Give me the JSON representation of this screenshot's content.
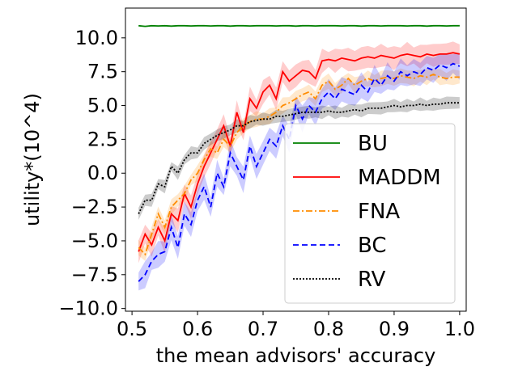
{
  "chart_data": {
    "type": "line",
    "title": "",
    "xlabel": "the mean advisors' accuracy",
    "ylabel": "utility*(10^4)",
    "xlim": [
      0.49,
      1.01
    ],
    "ylim": [
      -10.2,
      12.2
    ],
    "xticks": [
      0.5,
      0.6,
      0.7,
      0.8,
      0.9,
      1.0
    ],
    "xtick_labels": [
      "0.5",
      "0.6",
      "0.7",
      "0.8",
      "0.9",
      "1.0"
    ],
    "yticks": [
      -10,
      -7.5,
      -5,
      -2.5,
      0,
      2.5,
      5,
      7.5,
      10
    ],
    "ytick_labels": [
      "−10.0",
      "−7.5",
      "−5.0",
      "−2.5",
      "0.0",
      "2.5",
      "5.0",
      "7.5",
      "10.0"
    ],
    "grid": false,
    "legend_position": "lower-right",
    "x": [
      0.51,
      0.52,
      0.53,
      0.54,
      0.55,
      0.56,
      0.57,
      0.58,
      0.59,
      0.6,
      0.61,
      0.62,
      0.63,
      0.64,
      0.65,
      0.66,
      0.67,
      0.68,
      0.69,
      0.7,
      0.71,
      0.72,
      0.73,
      0.74,
      0.75,
      0.76,
      0.77,
      0.78,
      0.79,
      0.8,
      0.81,
      0.82,
      0.83,
      0.84,
      0.85,
      0.86,
      0.87,
      0.88,
      0.89,
      0.9,
      0.91,
      0.92,
      0.93,
      0.94,
      0.95,
      0.96,
      0.97,
      0.98,
      0.99,
      1.0
    ],
    "series": [
      {
        "name": "BU",
        "color": "#008000",
        "dash": "solid",
        "values": [
          10.9,
          10.85,
          10.9,
          10.88,
          10.9,
          10.87,
          10.9,
          10.9,
          10.88,
          10.9,
          10.9,
          10.88,
          10.9,
          10.9,
          10.87,
          10.9,
          10.9,
          10.88,
          10.9,
          10.9,
          10.9,
          10.88,
          10.9,
          10.9,
          10.87,
          10.9,
          10.9,
          10.88,
          10.9,
          10.9,
          10.9,
          10.88,
          10.9,
          10.9,
          10.87,
          10.9,
          10.9,
          10.88,
          10.9,
          10.9,
          10.9,
          10.88,
          10.9,
          10.9,
          10.87,
          10.9,
          10.9,
          10.88,
          10.9,
          10.9
        ],
        "band": 0.05
      },
      {
        "name": "MADDM",
        "color": "#ff0000",
        "dash": "solid",
        "values": [
          -5.8,
          -4.5,
          -5.3,
          -4.0,
          -5.0,
          -3.0,
          -3.5,
          -1.5,
          -2.5,
          -0.8,
          0.5,
          1.5,
          2.5,
          3.5,
          2.0,
          4.5,
          3.0,
          5.5,
          4.8,
          6.0,
          6.5,
          5.5,
          7.5,
          6.8,
          7.2,
          7.6,
          7.5,
          7.0,
          8.3,
          8.4,
          8.3,
          8.5,
          8.4,
          8.3,
          8.5,
          8.6,
          8.5,
          8.7,
          8.6,
          8.5,
          8.7,
          8.8,
          8.7,
          8.6,
          8.8,
          8.7,
          8.8,
          8.8,
          8.9,
          8.8
        ],
        "band": 0.9
      },
      {
        "name": "FNA",
        "color": "#ff8c00",
        "dash": "dashdot",
        "values": [
          -5.5,
          -6.0,
          -4.5,
          -3.0,
          -4.0,
          -2.5,
          -2.0,
          -1.5,
          -0.5,
          0.0,
          1.0,
          1.8,
          1.5,
          2.5,
          2.0,
          3.0,
          3.5,
          3.8,
          4.0,
          4.0,
          4.2,
          4.5,
          5.0,
          5.2,
          5.5,
          5.8,
          6.0,
          5.5,
          6.5,
          6.8,
          6.2,
          6.5,
          7.0,
          6.5,
          6.8,
          7.0,
          6.8,
          7.0,
          7.1,
          7.0,
          7.2,
          7.1,
          7.0,
          7.2,
          7.1,
          7.3,
          7.1,
          7.0,
          7.1,
          7.1
        ],
        "band": 0.6
      },
      {
        "name": "BC",
        "color": "#0000ff",
        "dash": "dashed",
        "values": [
          -8.0,
          -7.5,
          -6.5,
          -6.0,
          -5.8,
          -4.0,
          -5.5,
          -3.0,
          -3.8,
          -2.0,
          -1.0,
          -2.5,
          0.0,
          -1.0,
          1.5,
          0.5,
          -0.5,
          2.0,
          0.5,
          1.5,
          2.5,
          2.0,
          3.5,
          2.5,
          5.0,
          4.0,
          5.0,
          4.5,
          5.5,
          6.0,
          5.5,
          6.2,
          6.0,
          5.8,
          6.5,
          6.0,
          7.0,
          6.5,
          7.2,
          6.8,
          7.5,
          7.2,
          7.5,
          7.3,
          7.8,
          7.6,
          8.0,
          7.8,
          8.1,
          7.9
        ],
        "band": 1.0
      },
      {
        "name": "RV",
        "color": "#000000",
        "dash": "dotted",
        "values": [
          -3.0,
          -2.0,
          -2.0,
          -0.8,
          -1.0,
          0.5,
          0.0,
          1.0,
          1.5,
          1.5,
          2.2,
          2.5,
          2.8,
          3.0,
          3.2,
          3.5,
          3.5,
          3.8,
          3.9,
          4.0,
          4.0,
          4.2,
          4.2,
          4.3,
          4.4,
          4.5,
          4.5,
          4.5,
          4.5,
          4.6,
          4.5,
          4.5,
          4.6,
          4.7,
          4.6,
          4.8,
          4.8,
          4.8,
          4.9,
          5.0,
          4.9,
          5.0,
          5.0,
          5.1,
          5.0,
          5.1,
          5.1,
          5.2,
          5.2,
          5.2
        ],
        "band": 0.5
      }
    ]
  }
}
